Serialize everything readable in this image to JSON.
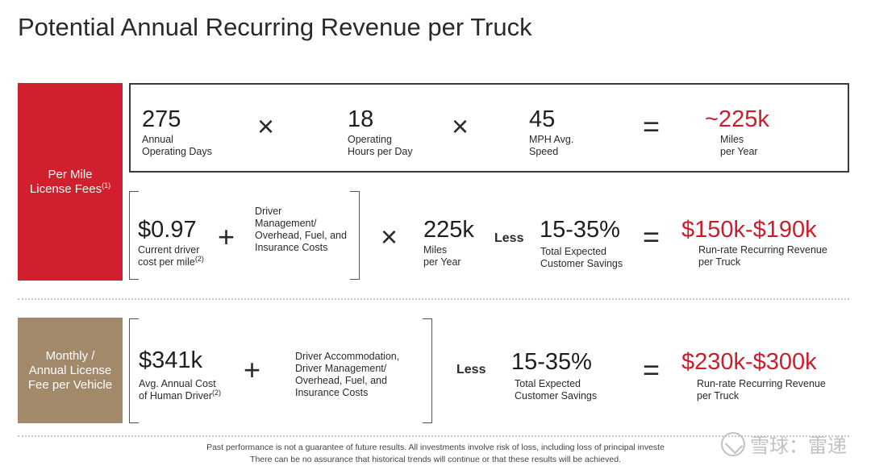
{
  "title": "Potential Annual Recurring Revenue per Truck",
  "section_per_mile": {
    "label_line1": "Per Mile",
    "label_line2": "License Fees",
    "label_note": "(1)",
    "row1": {
      "days_value": "275",
      "days_line1": "Annual",
      "days_line2": "Operating Days",
      "hours_value": "18",
      "hours_line1": "Operating",
      "hours_line2": "Hours per Day",
      "mph_value": "45",
      "mph_line1": "MPH Avg.",
      "mph_line2": "Speed",
      "result_value": "~225k",
      "result_line1": "Miles",
      "result_line2": "per Year"
    },
    "row2": {
      "cost_value": "$0.97",
      "cost_line1": "Current driver",
      "cost_line2": "cost per mile",
      "cost_note": "(2)",
      "overhead_line1": "Driver",
      "overhead_line2": "Management/",
      "overhead_line3": "Overhead, Fuel, and",
      "overhead_line4": "Insurance Costs",
      "miles_value": "225k",
      "miles_line1": "Miles",
      "miles_line2": "per Year",
      "less": "Less",
      "savings_value": "15-35%",
      "savings_line1": "Total Expected",
      "savings_line2": "Customer Savings",
      "result_value": "$150k-$190k",
      "result_line1": "Run-rate Recurring Revenue",
      "result_line2": "per Truck"
    }
  },
  "section_monthly": {
    "label_line1": "Monthly /",
    "label_line2": "Annual License",
    "label_line3": "Fee per Vehicle",
    "cost_value": "$341k",
    "cost_line1": "Avg. Annual Cost",
    "cost_line2": "of Human Driver",
    "cost_note": "(2)",
    "overhead_line1": "Driver Accommodation,",
    "overhead_line2": "Driver Management/",
    "overhead_line3": "Overhead, Fuel, and",
    "overhead_line4": "Insurance Costs",
    "less": "Less",
    "savings_value": "15-35%",
    "savings_line1": "Total Expected",
    "savings_line2": "Customer Savings",
    "result_value": "$230k-$300k",
    "result_line1": "Run-rate Recurring Revenue",
    "result_line2": "per Truck"
  },
  "operators": {
    "times": "×",
    "plus": "+",
    "equals": "="
  },
  "footer": {
    "line1": "Past performance is not a guarantee of future results. All investments involve risk of loss, including loss of principal investe",
    "line2": "There can be no assurance that historical trends will continue or that these results will be achieved."
  },
  "watermark": {
    "text": "雪球：雷递"
  },
  "colors": {
    "accent_red": "#d11f2d",
    "accent_tan": "#a2896a",
    "value_red": "#cc1d2b"
  }
}
